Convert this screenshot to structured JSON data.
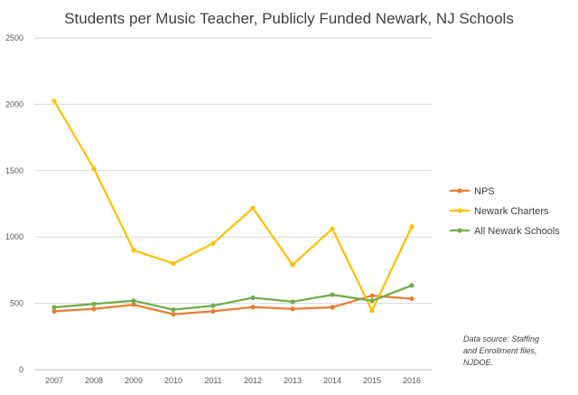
{
  "chart_data": {
    "type": "line",
    "title": "Students per Music Teacher, Publicly Funded Newark, NJ Schools",
    "xlabel": "",
    "ylabel": "",
    "x": [
      "2007",
      "2008",
      "2009",
      "2010",
      "2011",
      "2012",
      "2013",
      "2014",
      "2015",
      "2016"
    ],
    "ylim": [
      0,
      2500
    ],
    "yticks": [
      "0",
      "500",
      "1000",
      "1500",
      "2000",
      "2500"
    ],
    "grid": "horizontal",
    "legend": "right",
    "series": [
      {
        "name": "NPS",
        "color": "#ED7D31",
        "values": [
          440,
          458,
          490,
          418,
          440,
          472,
          458,
          470,
          558,
          535
        ]
      },
      {
        "name": "Newark Charters",
        "color": "#FFC000",
        "values": [
          2025,
          1515,
          900,
          800,
          952,
          1218,
          790,
          1062,
          445,
          1078
        ]
      },
      {
        "name": "All Newark Schools",
        "color": "#70AD47",
        "values": [
          470,
          495,
          520,
          452,
          482,
          542,
          512,
          565,
          520,
          635
        ]
      }
    ],
    "annotation": [
      "Data source: Staffing",
      "and Enrollment files,",
      "NJDOE."
    ]
  }
}
